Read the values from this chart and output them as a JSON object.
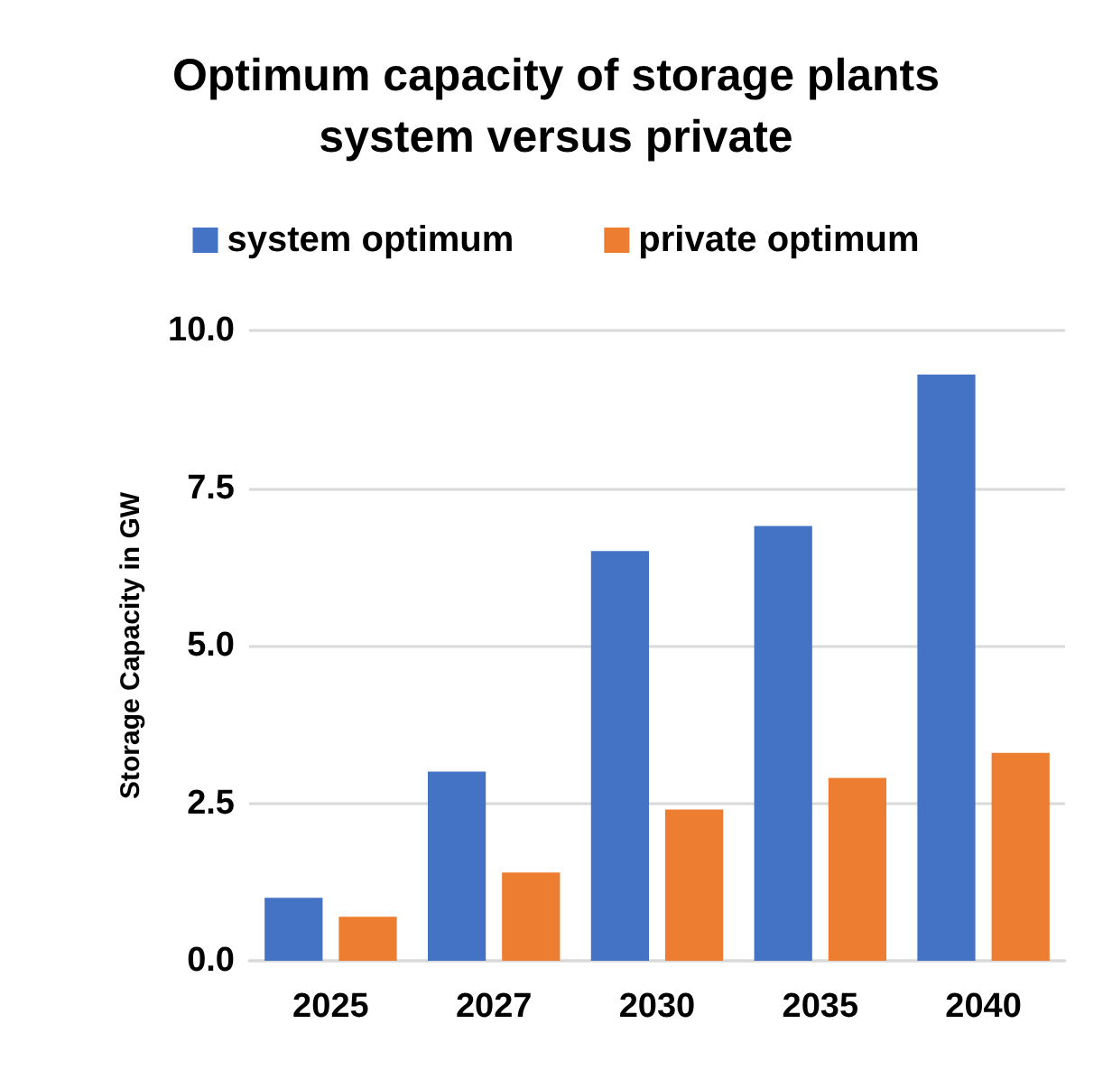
{
  "chart_data": {
    "type": "bar",
    "title": "Optimum capacity of storage plants\nsystem versus private",
    "ylabel": "Storage Capacity in GW",
    "categories": [
      "2025",
      "2027",
      "2030",
      "2035",
      "2040"
    ],
    "series": [
      {
        "name": "system optimum",
        "color": "#4472c4",
        "values": [
          1.0,
          3.0,
          6.5,
          6.9,
          9.3
        ]
      },
      {
        "name": "private optimum",
        "color": "#ed7d31",
        "values": [
          0.7,
          1.4,
          2.4,
          2.9,
          3.3
        ]
      }
    ],
    "ylim": [
      0,
      10
    ],
    "yticks": [
      {
        "value": 0,
        "label": "0.0"
      },
      {
        "value": 2.5,
        "label": "2.5"
      },
      {
        "value": 5,
        "label": "5.0"
      },
      {
        "value": 7.5,
        "label": "7.5"
      },
      {
        "value": 10,
        "label": "10.0"
      }
    ],
    "grid": "y",
    "legend": "top"
  }
}
